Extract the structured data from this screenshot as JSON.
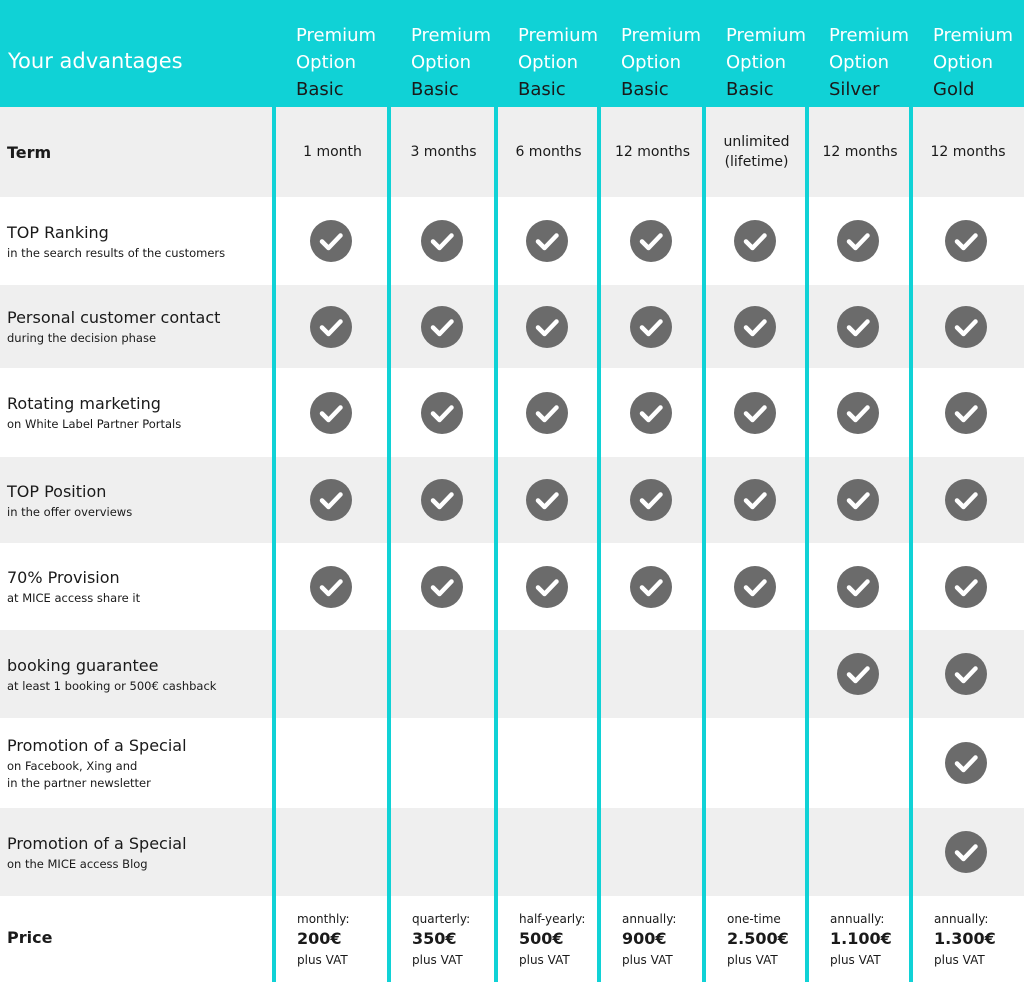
{
  "header": {
    "title": "Your advantages",
    "columns": [
      {
        "line1": "Premium",
        "line2": "Option",
        "tier": "Basic"
      },
      {
        "line1": "Premium",
        "line2": "Option",
        "tier": "Basic"
      },
      {
        "line1": "Premium",
        "line2": "Option",
        "tier": "Basic"
      },
      {
        "line1": "Premium",
        "line2": "Option",
        "tier": "Basic"
      },
      {
        "line1": "Premium",
        "line2": "Option",
        "tier": "Basic"
      },
      {
        "line1": "Premium",
        "line2": "Option",
        "tier": "Silver"
      },
      {
        "line1": "Premium",
        "line2": "Option",
        "tier": "Gold"
      }
    ]
  },
  "term": {
    "label": "Term",
    "values": [
      [
        "1 month"
      ],
      [
        "3 months"
      ],
      [
        "6 months"
      ],
      [
        "12 months"
      ],
      [
        "unlimited",
        "(lifetime)"
      ],
      [
        "12 months"
      ],
      [
        "12 months"
      ]
    ]
  },
  "features": [
    {
      "title": "TOP Ranking",
      "subtitle": [
        "in the search results of the customers"
      ],
      "included": [
        true,
        true,
        true,
        true,
        true,
        true,
        true
      ]
    },
    {
      "title": "Personal customer contact",
      "subtitle": [
        "during the decision phase"
      ],
      "included": [
        true,
        true,
        true,
        true,
        true,
        true,
        true
      ]
    },
    {
      "title": "Rotating marketing",
      "subtitle": [
        "on White Label Partner Portals"
      ],
      "included": [
        true,
        true,
        true,
        true,
        true,
        true,
        true
      ]
    },
    {
      "title": "TOP Position",
      "subtitle": [
        "in the offer overviews"
      ],
      "included": [
        true,
        true,
        true,
        true,
        true,
        true,
        true
      ]
    },
    {
      "title": "70% Provision",
      "subtitle": [
        "at MICE access share it"
      ],
      "included": [
        true,
        true,
        true,
        true,
        true,
        true,
        true
      ]
    },
    {
      "title": "booking guarantee",
      "subtitle": [
        "at least 1 booking or 500€ cashback"
      ],
      "included": [
        false,
        false,
        false,
        false,
        false,
        true,
        true
      ]
    },
    {
      "title": "Promotion of a Special",
      "subtitle": [
        "on Facebook, Xing and",
        "in the partner newsletter"
      ],
      "included": [
        false,
        false,
        false,
        false,
        false,
        false,
        true
      ]
    },
    {
      "title": "Promotion of a Special",
      "subtitle": [
        "on the MICE access Blog"
      ],
      "included": [
        false,
        false,
        false,
        false,
        false,
        false,
        true
      ]
    }
  ],
  "price": {
    "label": "Price",
    "cells": [
      {
        "period": "monthly:",
        "amount": "200€",
        "note": "plus VAT"
      },
      {
        "period": "quarterly:",
        "amount": "350€",
        "note": "plus VAT"
      },
      {
        "period": "half-yearly:",
        "amount": "500€",
        "note": "plus VAT"
      },
      {
        "period": "annually:",
        "amount": "900€",
        "note": "plus VAT"
      },
      {
        "period": "one-time",
        "amount": "2.500€",
        "note": "plus VAT"
      },
      {
        "period": "annually:",
        "amount": "1.100€",
        "note": "plus VAT"
      },
      {
        "period": "annually:",
        "amount": "1.300€",
        "note": "plus VAT"
      }
    ]
  }
}
